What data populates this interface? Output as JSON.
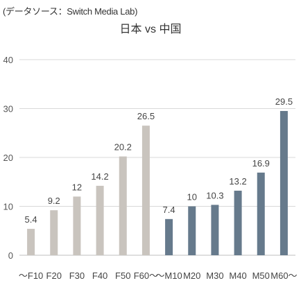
{
  "source_note": "(データソース：Switch Media Lab)",
  "chart_data": {
    "type": "bar",
    "title": "日本 vs 中国",
    "xlabel": "",
    "ylabel": "",
    "categories": [
      "～F10",
      "F20",
      "F30",
      "F40",
      "F50",
      "F60～",
      "～M10",
      "M20",
      "M30",
      "M40",
      "M50",
      "M60～"
    ],
    "values": [
      5.4,
      9.2,
      12,
      14.2,
      20.2,
      26.5,
      7.4,
      10,
      10.3,
      13.2,
      16.9,
      29.5
    ],
    "data_labels": [
      "5.4",
      "9.2",
      "12",
      "14.2",
      "20.2",
      "26.5",
      "7.4",
      "10",
      "10.3",
      "13.2",
      "16.9",
      "29.5"
    ],
    "ylim": [
      0,
      40
    ],
    "yticks": [
      0,
      10,
      20,
      30,
      40
    ],
    "grid": true,
    "legend": "none",
    "colors": {
      "female": "#c9c4be",
      "male": "#667a8c",
      "grid": "#d9d9d9",
      "baseline": "#bfbfbf"
    },
    "bar_groups": [
      "female",
      "female",
      "female",
      "female",
      "female",
      "female",
      "male",
      "male",
      "male",
      "male",
      "male",
      "male"
    ]
  }
}
